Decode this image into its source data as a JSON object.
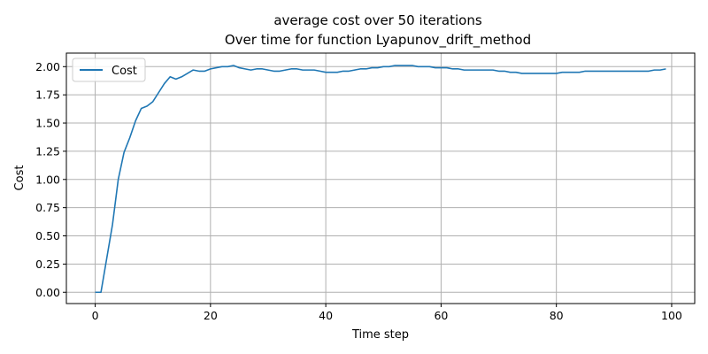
{
  "chart_data": {
    "type": "line",
    "title": "average cost over 50 iterations",
    "subtitle": "Over time for function Lyapunov_drift_method",
    "xlabel": "Time step",
    "ylabel": "Cost",
    "xlim": [
      -5,
      104
    ],
    "ylim": [
      -0.1,
      2.12
    ],
    "xticks": [
      0,
      20,
      40,
      60,
      80,
      100
    ],
    "xtick_labels": [
      "0",
      "20",
      "40",
      "60",
      "80",
      "100"
    ],
    "yticks": [
      0.0,
      0.25,
      0.5,
      0.75,
      1.0,
      1.25,
      1.5,
      1.75,
      2.0
    ],
    "ytick_labels": [
      "0.00",
      "0.25",
      "0.50",
      "0.75",
      "1.00",
      "1.25",
      "1.50",
      "1.75",
      "2.00"
    ],
    "grid": true,
    "legend_position": "top-left",
    "series": [
      {
        "name": "Cost",
        "color": "#1f77b4",
        "x": [
          0,
          1,
          2,
          3,
          4,
          5,
          6,
          7,
          8,
          9,
          10,
          11,
          12,
          13,
          14,
          15,
          16,
          17,
          18,
          19,
          20,
          21,
          22,
          23,
          24,
          25,
          26,
          27,
          28,
          29,
          30,
          31,
          32,
          33,
          34,
          35,
          36,
          37,
          38,
          39,
          40,
          41,
          42,
          43,
          44,
          45,
          46,
          47,
          48,
          49,
          50,
          51,
          52,
          53,
          54,
          55,
          56,
          57,
          58,
          59,
          60,
          61,
          62,
          63,
          64,
          65,
          66,
          67,
          68,
          69,
          70,
          71,
          72,
          73,
          74,
          75,
          76,
          77,
          78,
          79,
          80,
          81,
          82,
          83,
          84,
          85,
          86,
          87,
          88,
          89,
          90,
          91,
          92,
          93,
          94,
          95,
          96,
          97,
          98,
          99
        ],
        "y": [
          0.0,
          0.0,
          0.3,
          0.6,
          1.0,
          1.24,
          1.37,
          1.52,
          1.63,
          1.65,
          1.69,
          1.77,
          1.85,
          1.91,
          1.89,
          1.91,
          1.94,
          1.97,
          1.96,
          1.96,
          1.98,
          1.99,
          2.0,
          2.0,
          2.01,
          1.99,
          1.98,
          1.97,
          1.98,
          1.98,
          1.97,
          1.96,
          1.96,
          1.97,
          1.98,
          1.98,
          1.97,
          1.97,
          1.97,
          1.96,
          1.95,
          1.95,
          1.95,
          1.96,
          1.96,
          1.97,
          1.98,
          1.98,
          1.99,
          1.99,
          2.0,
          2.0,
          2.01,
          2.01,
          2.01,
          2.01,
          2.0,
          2.0,
          2.0,
          1.99,
          1.99,
          1.99,
          1.98,
          1.98,
          1.97,
          1.97,
          1.97,
          1.97,
          1.97,
          1.97,
          1.96,
          1.96,
          1.95,
          1.95,
          1.94,
          1.94,
          1.94,
          1.94,
          1.94,
          1.94,
          1.94,
          1.95,
          1.95,
          1.95,
          1.95,
          1.96,
          1.96,
          1.96,
          1.96,
          1.96,
          1.96,
          1.96,
          1.96,
          1.96,
          1.96,
          1.96,
          1.96,
          1.97,
          1.97,
          1.98
        ]
      }
    ]
  }
}
